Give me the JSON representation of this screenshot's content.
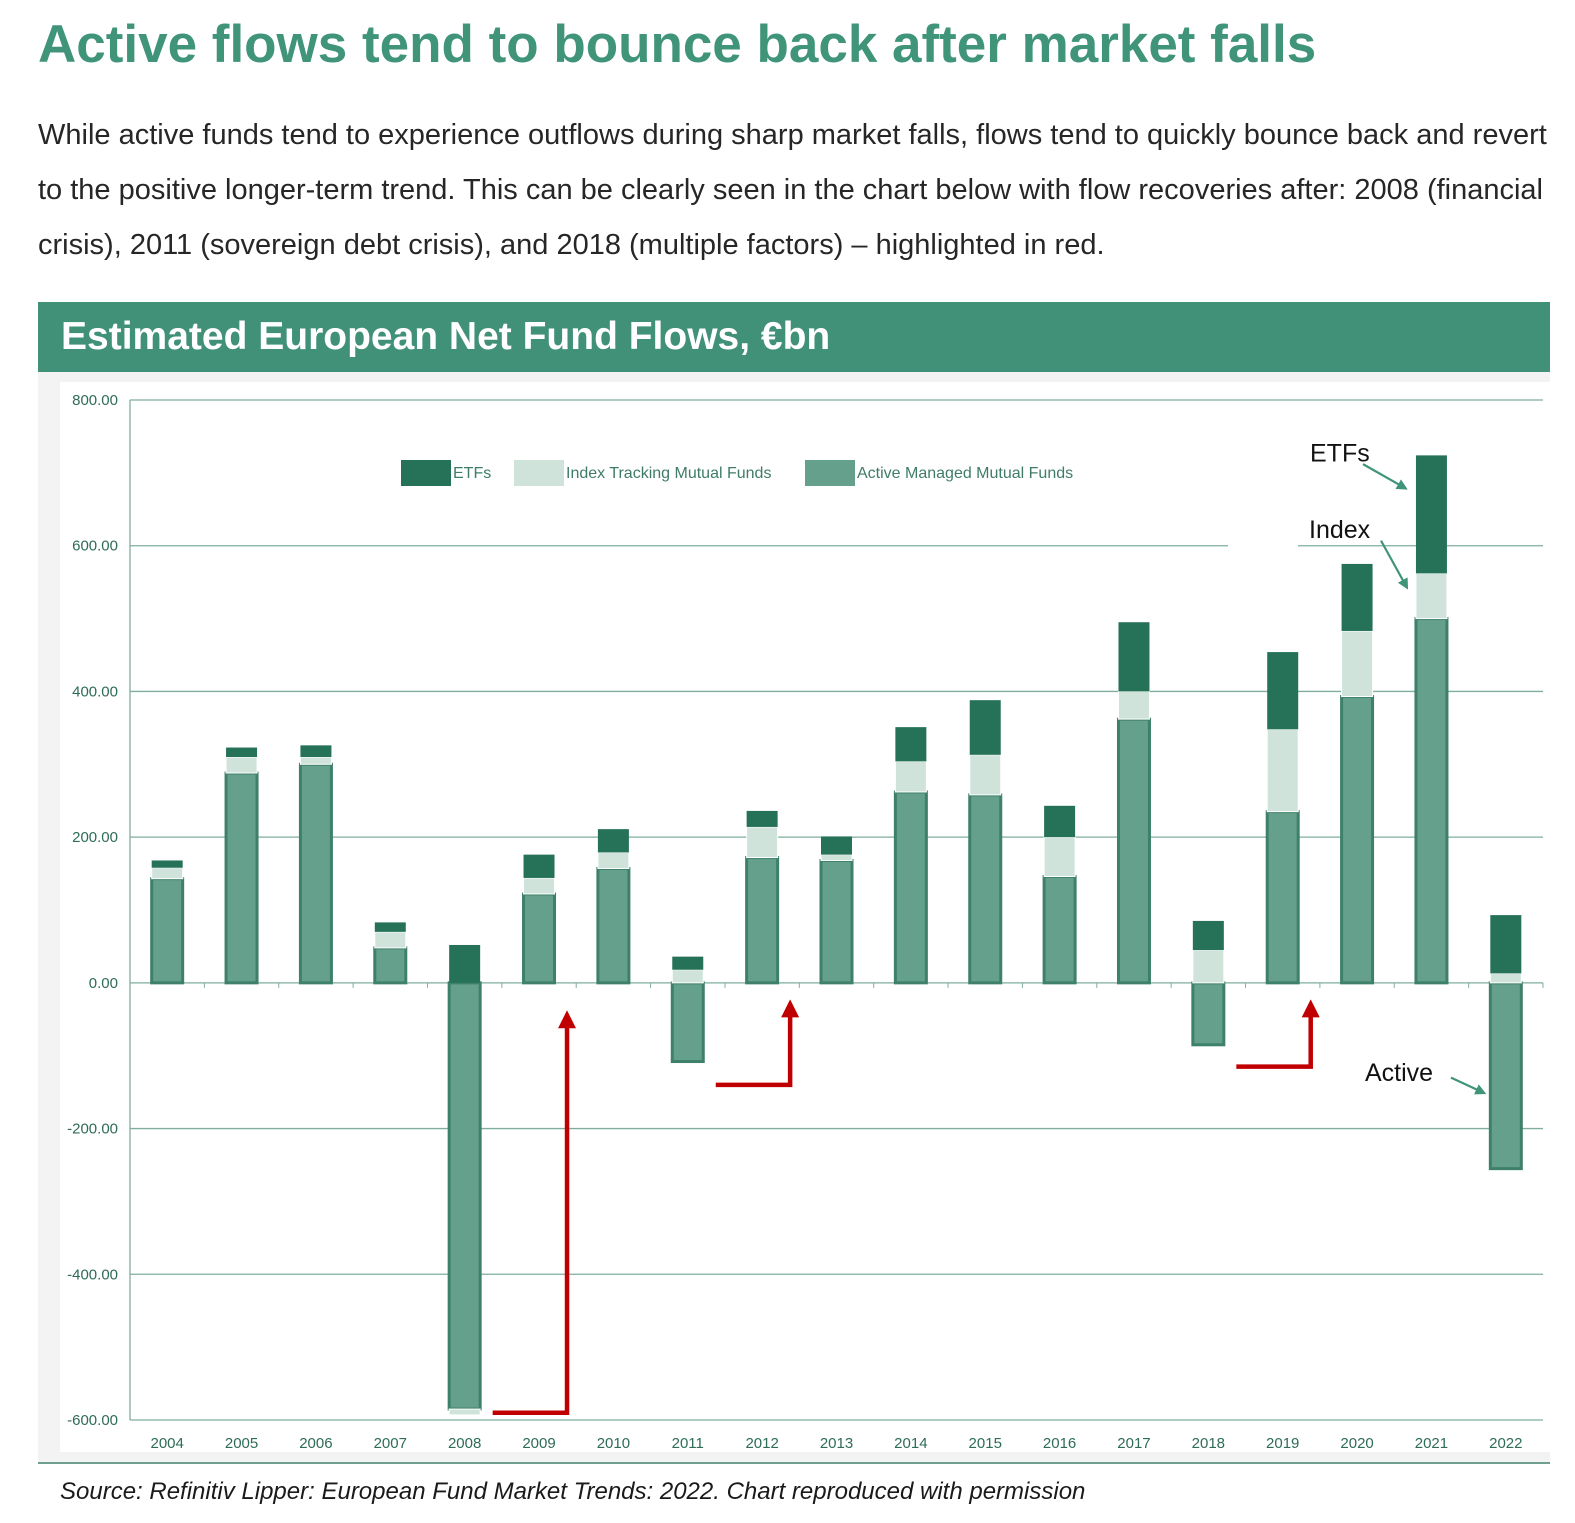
{
  "headline": "Active flows tend to bounce back after market falls",
  "intro": "While active funds tend to experience outflows during sharp market falls, flows tend to quickly bounce back and revert to the positive longer-term trend. This can be clearly seen in the chart below with flow recoveries after: 2008 (financial crisis), 2011 (sovereign debt crisis), and 2018 (multiple factors) – highlighted in red.",
  "chart_header": "Estimated European Net Fund Flows, €bn",
  "source": "Source: Refinitiv Lipper: European Fund Market Trends: 2022. Chart reproduced with permission",
  "colors": {
    "etf": "#267259",
    "index": "#cfe3db",
    "active": "#64a08c",
    "active_border": "#3e8069",
    "grid": "#7fae9c",
    "arrow_red": "#c00000",
    "arrow_green": "#3f9479"
  },
  "chart_data": {
    "type": "bar",
    "stacked": true,
    "title": "Estimated European Net Fund Flows, €bn",
    "categories": [
      "2004",
      "2005",
      "2006",
      "2007",
      "2008",
      "2009",
      "2010",
      "2011",
      "2012",
      "2013",
      "2014",
      "2015",
      "2016",
      "2017",
      "2018",
      "2019",
      "2020",
      "2021",
      "2022"
    ],
    "series": [
      {
        "name": "Active Managed Mutual Funds",
        "values": [
          143,
          288,
          300,
          48,
          -585,
          122,
          157,
          -108,
          172,
          168,
          262,
          258,
          146,
          362,
          -85,
          235,
          393,
          500,
          -255
        ]
      },
      {
        "name": "Index Tracking Mutual Funds",
        "values": [
          15,
          22,
          10,
          22,
          -8,
          22,
          22,
          18,
          42,
          8,
          42,
          55,
          54,
          38,
          45,
          113,
          90,
          62,
          13
        ]
      },
      {
        "name": "ETFs",
        "values": [
          10,
          13,
          16,
          13,
          52,
          32,
          32,
          18,
          22,
          25,
          47,
          75,
          43,
          95,
          40,
          106,
          92,
          162,
          80
        ]
      }
    ],
    "ylim": [
      -600,
      800
    ],
    "yticks": [
      "800.00",
      "600.00",
      "400.00",
      "200.00",
      "0.00",
      "-200.00",
      "-400.00",
      "-600.00"
    ],
    "ytick_values": [
      800,
      600,
      400,
      200,
      0,
      -200,
      -400,
      -600
    ],
    "grid": true,
    "legend_position": "top",
    "legend": [
      "ETFs",
      "Index Tracking Mutual Funds",
      "Active Managed Mutual Funds"
    ],
    "annotations": [
      {
        "text": "ETFs",
        "target_category": "2021"
      },
      {
        "text": "Index",
        "target_category": "2021"
      },
      {
        "text": "Active",
        "target_category": "2022"
      }
    ],
    "recovery_arrows": [
      {
        "from": "2008",
        "to": "2009",
        "from_value": -590,
        "to_value": -50
      },
      {
        "from": "2011",
        "to": "2012",
        "from_value": -140,
        "to_value": -35
      },
      {
        "from": "2018",
        "to": "2019",
        "from_value": -115,
        "to_value": -35
      }
    ]
  }
}
